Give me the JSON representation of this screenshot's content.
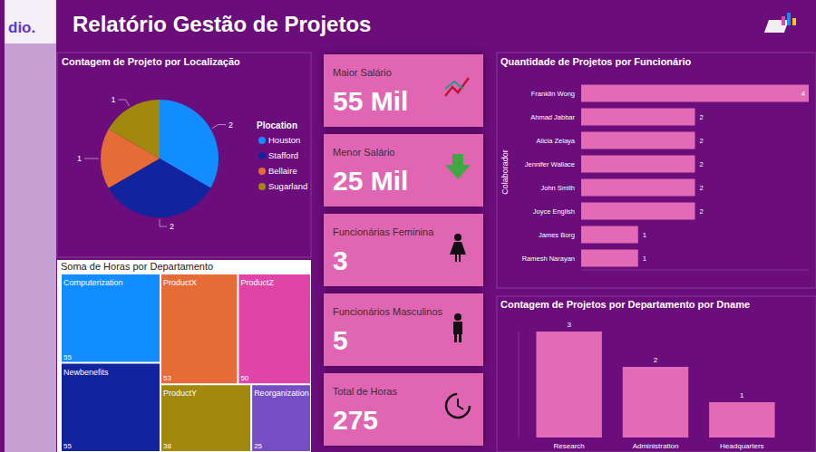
{
  "header": {
    "logo": "dio.",
    "title": "Relatório Gestão de Projetos"
  },
  "cards": [
    {
      "title": "Maior Salário",
      "value": "55 Mil"
    },
    {
      "title": "Menor Salário",
      "value": "25 Mil"
    },
    {
      "title": "Funcionárias Feminina",
      "value": "3"
    },
    {
      "title": "Funcionários Masculinos",
      "value": "5"
    },
    {
      "title": "Total de Horas",
      "value": "275"
    }
  ],
  "chart_data": [
    {
      "type": "pie",
      "title": "Contagem de Projeto por Localização",
      "legend_title": "Plocation",
      "categories": [
        "Houston",
        "Stafford",
        "Bellaire",
        "Sugarland"
      ],
      "values": [
        2,
        2,
        1,
        1
      ],
      "colors": [
        "#118dff",
        "#12239e",
        "#e66c37",
        "#a0890c"
      ],
      "data_labels": true,
      "legend": "right"
    },
    {
      "type": "treemap",
      "title": "Soma de Horas por Departamento",
      "categories": [
        "Computerization",
        "Newbenefits",
        "ProductX",
        "ProductZ",
        "ProductY",
        "Reorganization"
      ],
      "values": [
        55,
        55,
        53,
        50,
        38,
        25
      ],
      "colors": [
        "#118dff",
        "#12239e",
        "#e66c37",
        "#e044a7",
        "#a0890c",
        "#744ec2"
      ],
      "data_labels": true
    },
    {
      "type": "bar",
      "orientation": "horizontal",
      "title": "Quantidade de Projetos por Funcionário",
      "y_label": "Colaborador",
      "categories": [
        "Franklin Wong",
        "Ahmad Jabbar",
        "Alicia Zelaya",
        "Jennifer Wallace",
        "John Smith",
        "Joyce English",
        "James Borg",
        "Ramesh Narayan"
      ],
      "values": [
        4,
        2,
        2,
        2,
        2,
        2,
        1,
        1
      ],
      "color": "#e36bb5",
      "xlim": [
        0,
        4
      ],
      "data_labels": true,
      "tick_labels": "y"
    },
    {
      "type": "bar",
      "title": "Contagem de Projetos por Departamento por Dname",
      "categories": [
        "Research",
        "Administration",
        "Headquarters"
      ],
      "values": [
        3,
        2,
        1
      ],
      "color": "#e36bb5",
      "ylim": [
        0,
        3
      ],
      "data_labels": true,
      "tick_labels": "x"
    }
  ]
}
